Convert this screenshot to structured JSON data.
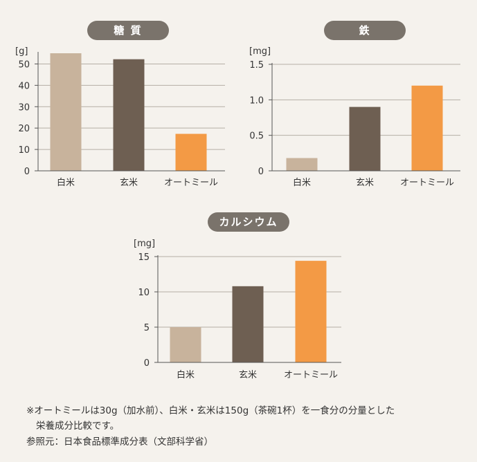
{
  "colors": {
    "white_rice": "#c8b39c",
    "brown_rice": "#6e5f52",
    "oatmeal": "#f39a45",
    "pill_bg": "#7a736b",
    "axis": "#555555",
    "grid": "#b5aea5",
    "background": "#f5f2ed"
  },
  "chart_data": [
    {
      "type": "bar",
      "title": "糖 質",
      "unit": "[g]",
      "categories": [
        "白米",
        "玄米",
        "オートミール"
      ],
      "values": [
        55.1,
        52.2,
        17.3
      ],
      "ylim": [
        0,
        55
      ],
      "yticks": [
        0,
        10,
        20,
        30,
        40,
        50
      ],
      "ytick_labels": [
        "0",
        "10",
        "20",
        "30",
        "40",
        "50"
      ],
      "grid": true
    },
    {
      "type": "bar",
      "title": "鉄",
      "unit": "[mg]",
      "categories": [
        "白米",
        "玄米",
        "オートミール"
      ],
      "values": [
        0.18,
        0.9,
        1.2
      ],
      "ylim": [
        0,
        1.5
      ],
      "yticks": [
        0,
        0.5,
        1.0,
        1.5
      ],
      "ytick_labels": [
        "0",
        "0.5",
        "1.0",
        "1.5"
      ],
      "grid": true
    },
    {
      "type": "bar",
      "title": "カルシウム",
      "unit": "[mg]",
      "categories": [
        "白米",
        "玄米",
        "オートミール"
      ],
      "values": [
        5,
        10.8,
        14.4
      ],
      "ylim": [
        0,
        15
      ],
      "yticks": [
        0,
        5,
        10,
        15
      ],
      "ytick_labels": [
        "0",
        "5",
        "10",
        "15"
      ],
      "grid": true
    }
  ],
  "notes": {
    "line1": "※オートミールは30g（加水前）、白米・玄米は150g（茶碗1杯）を一食分の分量とした",
    "line2": "栄養成分比較です。",
    "line3": "参照元：日本食品標準成分表（文部科学省）"
  }
}
